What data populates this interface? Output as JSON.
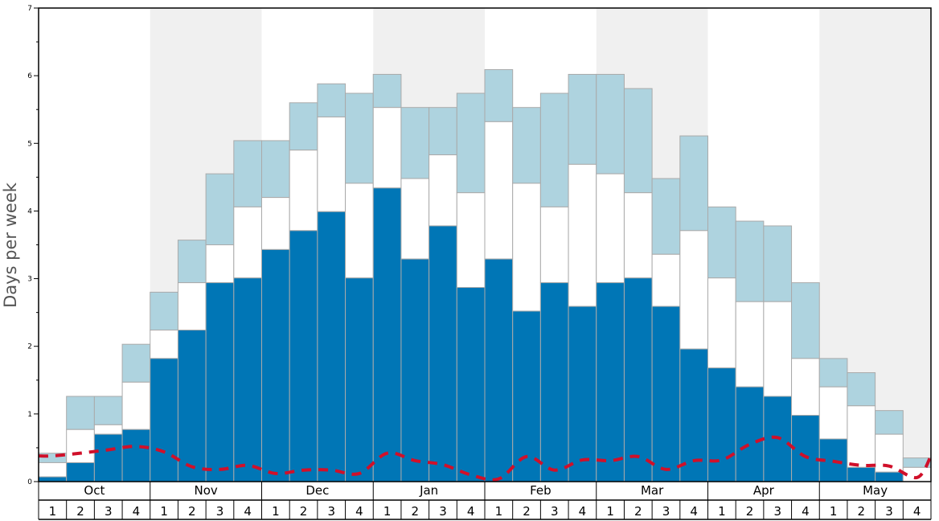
{
  "chart_data": {
    "type": "bar",
    "ylabel": "Days per week",
    "ylim": [
      0,
      7
    ],
    "y_ticks": [
      "0",
      "1",
      "2",
      "3",
      "4",
      "5",
      "6",
      "7"
    ],
    "months": [
      "Oct",
      "Nov",
      "Dec",
      "Jan",
      "Feb",
      "Mar",
      "Apr",
      "May"
    ],
    "week_labels": [
      "1",
      "2",
      "3",
      "4"
    ],
    "colors": {
      "dark": "#0076b6",
      "mid": "#ffffff",
      "light": "#aed3df",
      "line": "#d0102a",
      "shade": "#f0f0f0"
    },
    "series": [
      {
        "values": [
          0.07,
          0.28,
          0.7,
          0.77,
          1.82,
          2.24,
          2.94,
          3.01,
          3.43,
          3.71,
          3.99,
          3.01,
          4.34,
          3.29,
          3.78,
          2.87,
          3.29,
          2.52,
          2.94,
          2.59,
          2.94,
          3.01,
          2.59,
          1.96,
          1.68,
          1.4,
          1.26,
          0.98,
          0.63,
          0.21,
          0.14,
          0.0
        ]
      },
      {
        "values": [
          0.28,
          0.77,
          0.84,
          1.47,
          2.24,
          2.94,
          3.5,
          4.06,
          4.2,
          4.9,
          5.39,
          4.41,
          5.53,
          4.48,
          4.83,
          4.27,
          5.32,
          4.41,
          4.06,
          4.69,
          4.55,
          4.27,
          3.36,
          3.71,
          3.01,
          2.66,
          2.66,
          1.82,
          1.4,
          1.12,
          0.7,
          0.21
        ]
      },
      {
        "values": [
          0.42,
          1.26,
          1.26,
          2.03,
          2.8,
          3.57,
          4.55,
          5.04,
          5.04,
          5.6,
          5.88,
          5.74,
          6.02,
          5.53,
          5.53,
          5.74,
          6.09,
          5.53,
          5.74,
          6.02,
          6.02,
          5.81,
          4.48,
          5.11,
          4.06,
          3.85,
          3.78,
          2.94,
          1.82,
          1.61,
          1.05,
          0.35
        ]
      },
      {
        "values": [
          0.38,
          0.42,
          0.47,
          0.52,
          0.44,
          0.22,
          0.18,
          0.24,
          0.12,
          0.17,
          0.17,
          0.12,
          0.42,
          0.31,
          0.25,
          0.1,
          0.04,
          0.37,
          0.17,
          0.32,
          0.31,
          0.37,
          0.18,
          0.31,
          0.32,
          0.55,
          0.65,
          0.37,
          0.3,
          0.24,
          0.23,
          0.06
        ]
      }
    ],
    "line_end": 0.38
  }
}
